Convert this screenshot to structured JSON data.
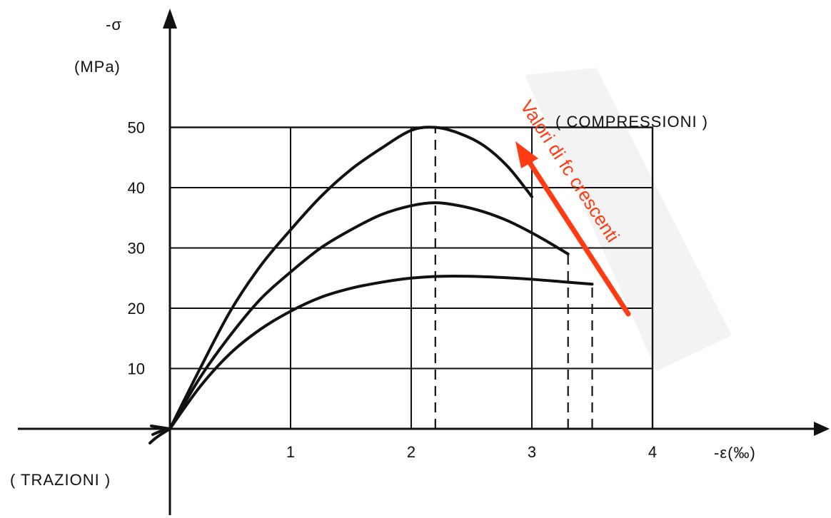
{
  "chart_data": {
    "type": "line",
    "y_axis_symbol": "-σ",
    "y_axis_unit": "(MPa)",
    "x_axis_label": "-ε(‰)",
    "label_compression": "( COMPRESSIONI )",
    "label_tension": "( TRAZIONI )",
    "annotation": "Valori di fc crescenti",
    "colors": {
      "ink": "#111111",
      "annotation": "#ff3b14",
      "highlight_band": "#f2f2f2"
    },
    "x_ticks": [
      "1",
      "2",
      "3",
      "4"
    ],
    "y_ticks": [
      "10",
      "20",
      "30",
      "40",
      "50"
    ],
    "xlim": [
      0,
      4
    ],
    "ylim": [
      0,
      50
    ],
    "grid": true,
    "series": [
      {
        "x": [
          0,
          0.25,
          0.5,
          0.75,
          1.0,
          1.25,
          1.5,
          1.75,
          2.0,
          2.2,
          2.4,
          2.6,
          2.8,
          3.0
        ],
        "y": [
          0,
          10,
          19.5,
          27,
          33,
          38.5,
          43,
          46.5,
          49.5,
          50,
          49,
          47,
          43.5,
          38.5
        ],
        "end_strain": 3.0
      },
      {
        "x": [
          0,
          0.25,
          0.5,
          0.75,
          1.0,
          1.25,
          1.5,
          1.75,
          2.0,
          2.2,
          2.4,
          2.6,
          2.8,
          3.0,
          3.15,
          3.3
        ],
        "y": [
          0,
          8.5,
          15.5,
          21.5,
          26,
          30,
          33,
          35.5,
          37,
          37.5,
          37,
          36,
          34.5,
          32.5,
          30.8,
          29
        ],
        "end_strain": 3.3
      },
      {
        "x": [
          0,
          0.25,
          0.5,
          0.75,
          1.0,
          1.25,
          1.5,
          1.75,
          2.0,
          2.25,
          2.5,
          2.75,
          3.0,
          3.25,
          3.5
        ],
        "y": [
          0,
          7,
          12.5,
          16.5,
          19.5,
          21.8,
          23.3,
          24.3,
          25,
          25.3,
          25.3,
          25.1,
          24.8,
          24.4,
          24
        ],
        "end_strain": 3.5
      }
    ],
    "peak_strain_line": 2.2
  }
}
